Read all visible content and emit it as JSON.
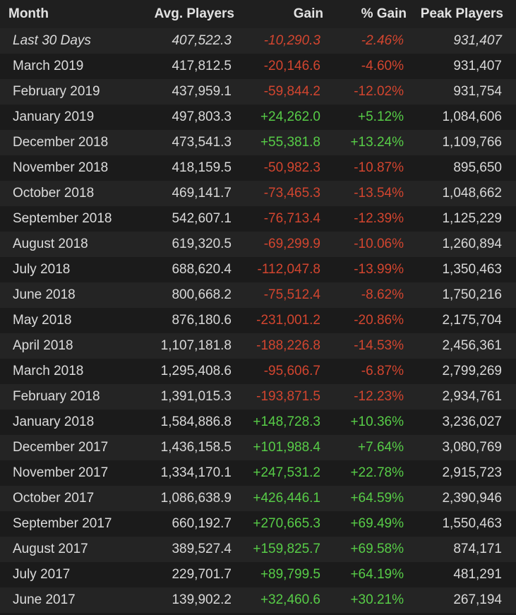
{
  "headers": {
    "month": "Month",
    "avg_players": "Avg. Players",
    "gain": "Gain",
    "pct_gain": "% Gain",
    "peak_players": "Peak Players"
  },
  "colors": {
    "negative": "#d2452f",
    "positive": "#57cc47"
  },
  "rows": [
    {
      "month": "Last 30 Days",
      "avg": "407,522.3",
      "gain": "-10,290.3",
      "pct": "-2.46%",
      "peak": "931,407"
    },
    {
      "month": "March 2019",
      "avg": "417,812.5",
      "gain": "-20,146.6",
      "pct": "-4.60%",
      "peak": "931,407"
    },
    {
      "month": "February 2019",
      "avg": "437,959.1",
      "gain": "-59,844.2",
      "pct": "-12.02%",
      "peak": "931,754"
    },
    {
      "month": "January 2019",
      "avg": "497,803.3",
      "gain": "+24,262.0",
      "pct": "+5.12%",
      "peak": "1,084,606"
    },
    {
      "month": "December 2018",
      "avg": "473,541.3",
      "gain": "+55,381.8",
      "pct": "+13.24%",
      "peak": "1,109,766"
    },
    {
      "month": "November 2018",
      "avg": "418,159.5",
      "gain": "-50,982.3",
      "pct": "-10.87%",
      "peak": "895,650"
    },
    {
      "month": "October 2018",
      "avg": "469,141.7",
      "gain": "-73,465.3",
      "pct": "-13.54%",
      "peak": "1,048,662"
    },
    {
      "month": "September 2018",
      "avg": "542,607.1",
      "gain": "-76,713.4",
      "pct": "-12.39%",
      "peak": "1,125,229"
    },
    {
      "month": "August 2018",
      "avg": "619,320.5",
      "gain": "-69,299.9",
      "pct": "-10.06%",
      "peak": "1,260,894"
    },
    {
      "month": "July 2018",
      "avg": "688,620.4",
      "gain": "-112,047.8",
      "pct": "-13.99%",
      "peak": "1,350,463"
    },
    {
      "month": "June 2018",
      "avg": "800,668.2",
      "gain": "-75,512.4",
      "pct": "-8.62%",
      "peak": "1,750,216"
    },
    {
      "month": "May 2018",
      "avg": "876,180.6",
      "gain": "-231,001.2",
      "pct": "-20.86%",
      "peak": "2,175,704"
    },
    {
      "month": "April 2018",
      "avg": "1,107,181.8",
      "gain": "-188,226.8",
      "pct": "-14.53%",
      "peak": "2,456,361"
    },
    {
      "month": "March 2018",
      "avg": "1,295,408.6",
      "gain": "-95,606.7",
      "pct": "-6.87%",
      "peak": "2,799,269"
    },
    {
      "month": "February 2018",
      "avg": "1,391,015.3",
      "gain": "-193,871.5",
      "pct": "-12.23%",
      "peak": "2,934,761"
    },
    {
      "month": "January 2018",
      "avg": "1,584,886.8",
      "gain": "+148,728.3",
      "pct": "+10.36%",
      "peak": "3,236,027"
    },
    {
      "month": "December 2017",
      "avg": "1,436,158.5",
      "gain": "+101,988.4",
      "pct": "+7.64%",
      "peak": "3,080,769"
    },
    {
      "month": "November 2017",
      "avg": "1,334,170.1",
      "gain": "+247,531.2",
      "pct": "+22.78%",
      "peak": "2,915,723"
    },
    {
      "month": "October 2017",
      "avg": "1,086,638.9",
      "gain": "+426,446.1",
      "pct": "+64.59%",
      "peak": "2,390,946"
    },
    {
      "month": "September 2017",
      "avg": "660,192.7",
      "gain": "+270,665.3",
      "pct": "+69.49%",
      "peak": "1,550,463"
    },
    {
      "month": "August 2017",
      "avg": "389,527.4",
      "gain": "+159,825.7",
      "pct": "+69.58%",
      "peak": "874,171"
    },
    {
      "month": "July 2017",
      "avg": "229,701.7",
      "gain": "+89,799.5",
      "pct": "+64.19%",
      "peak": "481,291"
    },
    {
      "month": "June 2017",
      "avg": "139,902.2",
      "gain": "+32,460.6",
      "pct": "+30.21%",
      "peak": "267,194"
    }
  ]
}
